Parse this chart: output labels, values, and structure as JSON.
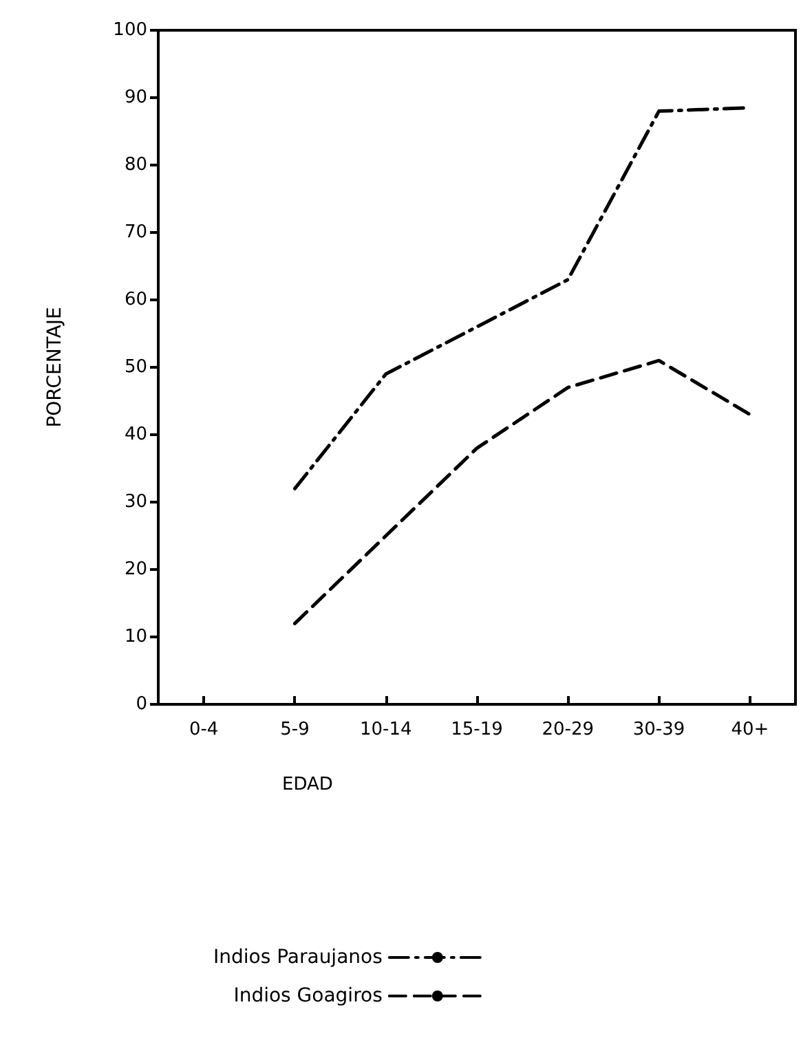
{
  "chart_data": {
    "type": "line",
    "xlabel": "EDAD",
    "ylabel": "PORCENTAJE",
    "categories": [
      "0-4",
      "5-9",
      "10-14",
      "15-19",
      "20-29",
      "30-39",
      "40+"
    ],
    "series": [
      {
        "name": "Indios Paraujanos",
        "color": "#000000",
        "line_style": "dashdot",
        "values": [
          null,
          32,
          49,
          56,
          63,
          88,
          88.5
        ]
      },
      {
        "name": "Indios Goagiros",
        "color": "#000000",
        "line_style": "dashed",
        "values": [
          null,
          12,
          25,
          38,
          47,
          51,
          43
        ]
      }
    ],
    "ylim": [
      0,
      100
    ],
    "yticks": [
      0,
      10,
      20,
      30,
      40,
      50,
      60,
      70,
      80,
      90,
      100
    ],
    "grid": false,
    "legend": "bottom",
    "marker": "none"
  }
}
